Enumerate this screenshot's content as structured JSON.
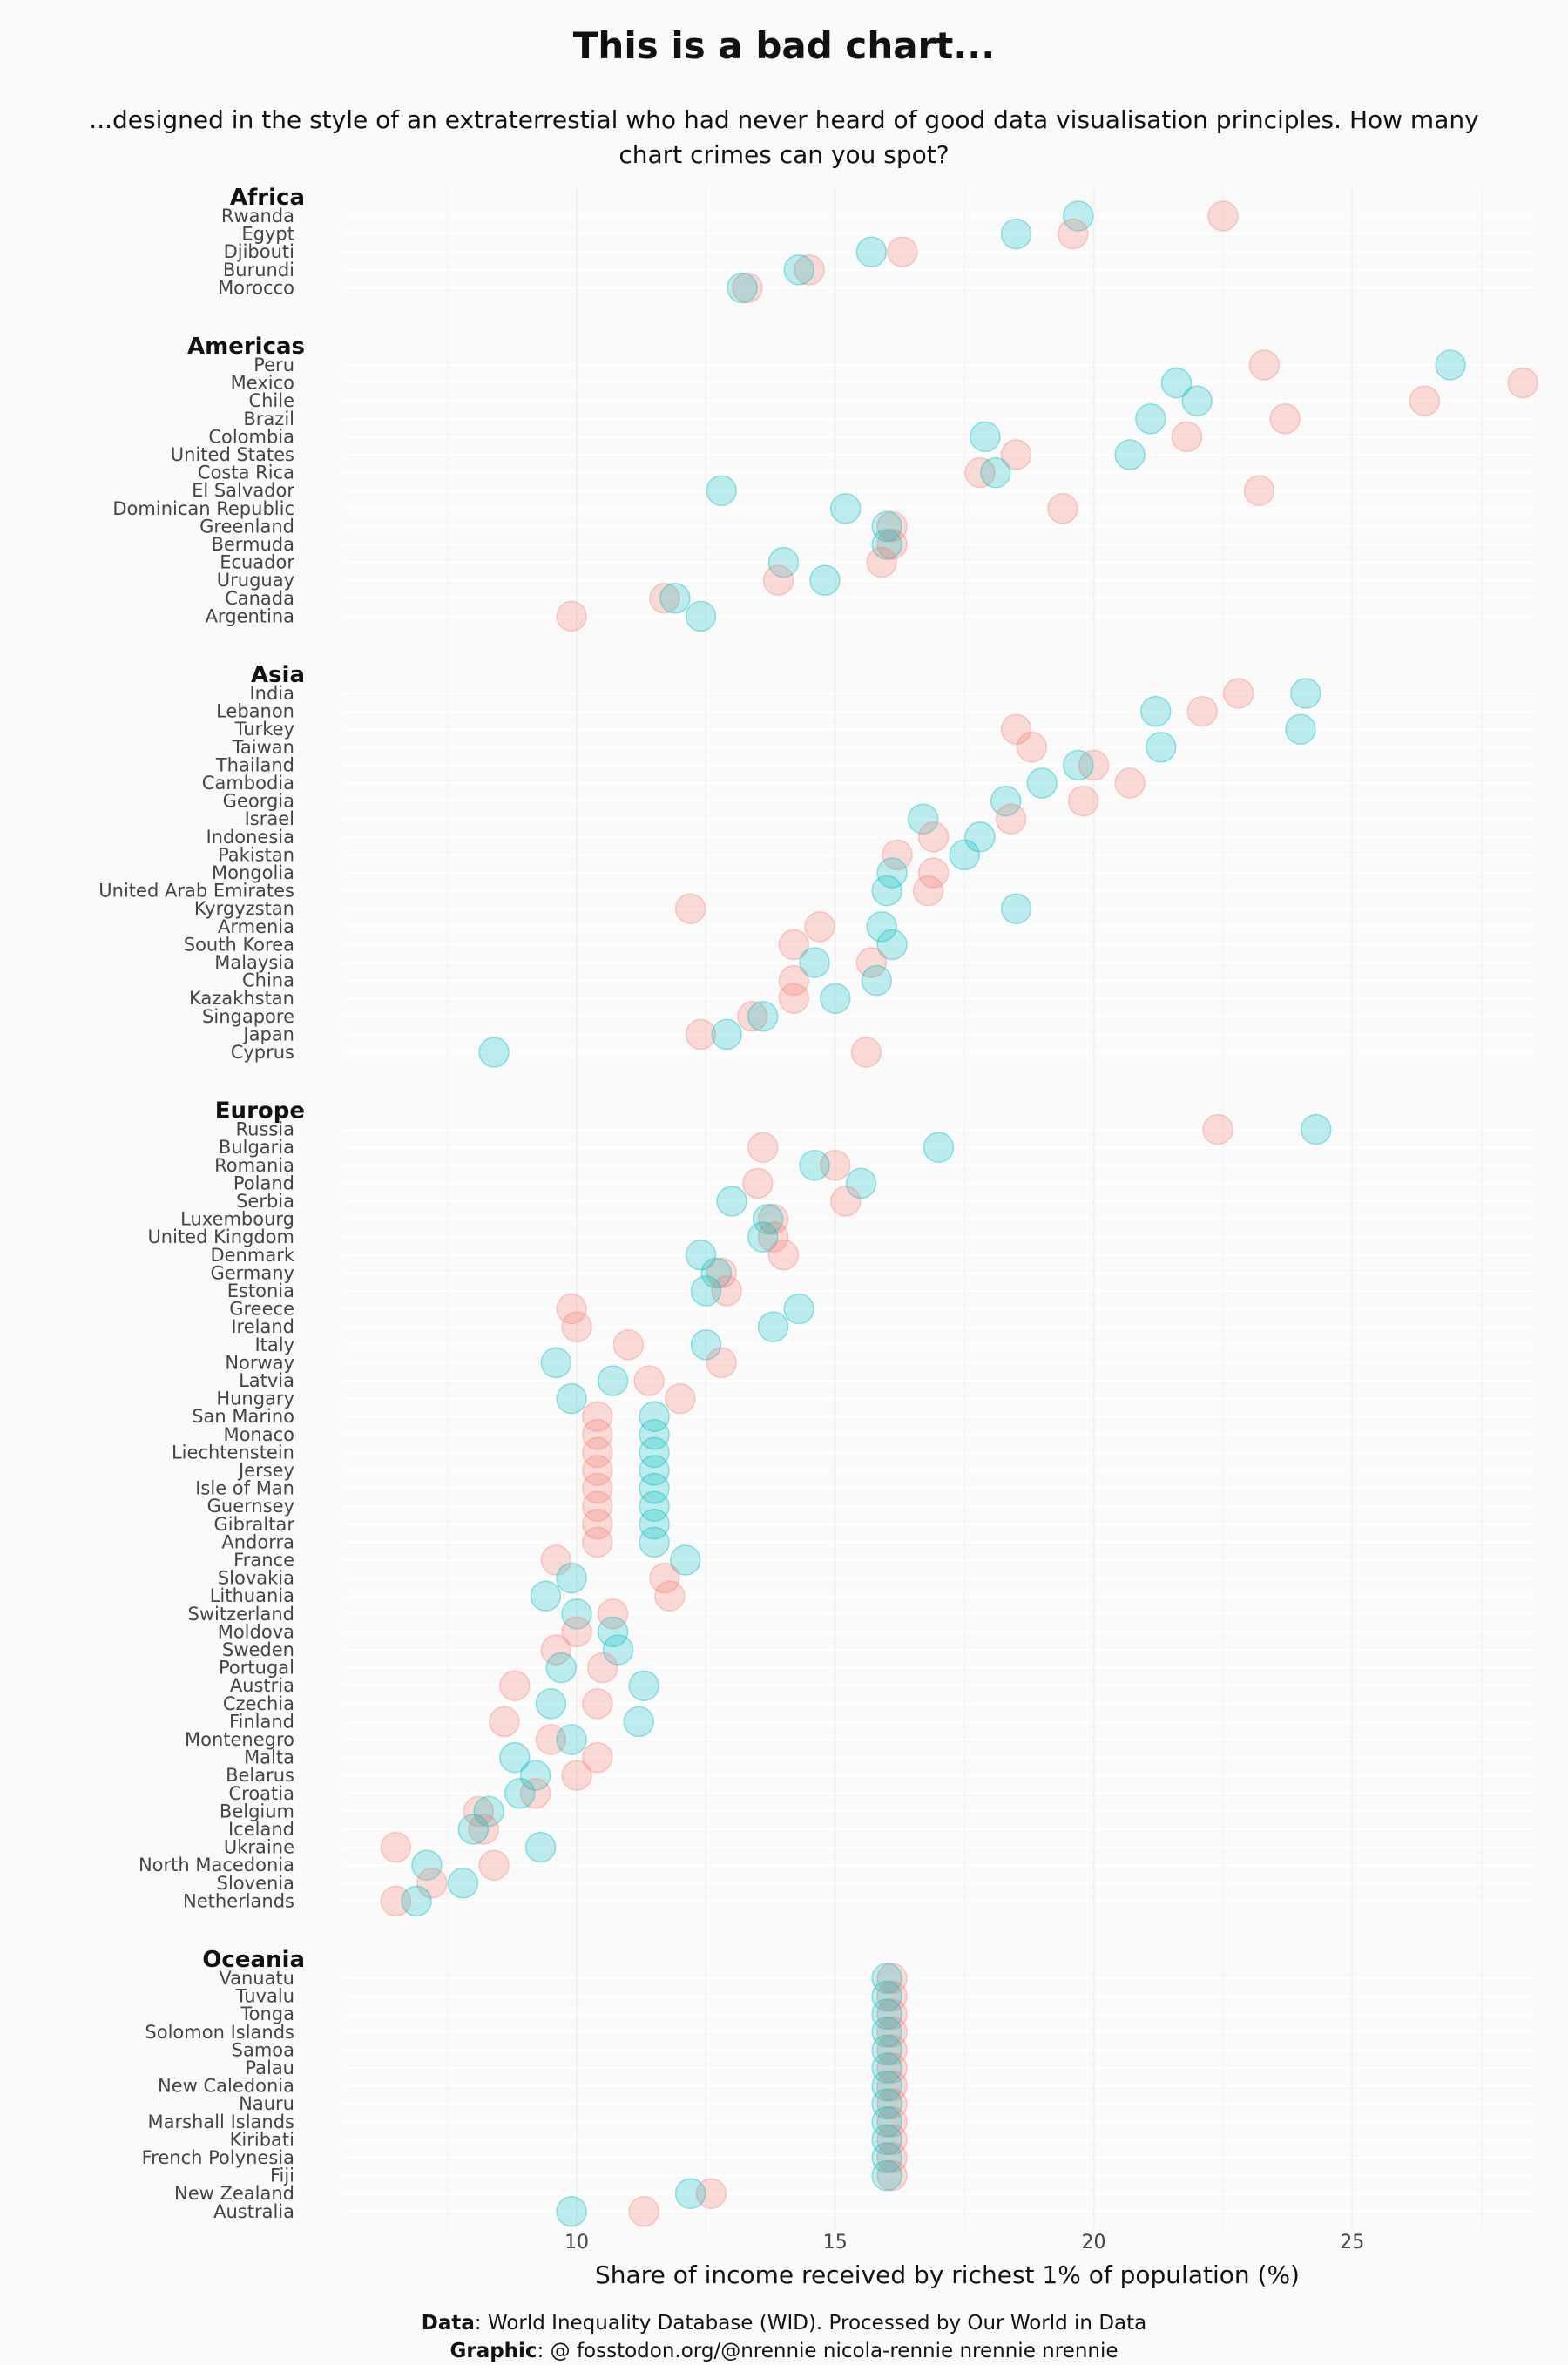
{
  "chart_data": {
    "type": "scatter",
    "title": "This is a bad chart...",
    "subtitle": "...designed in the style of an extraterrestial who had never heard of good data visualisation principles. How many chart crimes can you spot?",
    "xlabel": "Share of income received by richest 1% of population (%)",
    "xlim": [
      5.5,
      28.5
    ],
    "xticks": [
      10,
      15,
      20,
      25
    ],
    "xtick_labels": [
      "10",
      "15",
      "20",
      "25"
    ],
    "colors": {
      "series_a": "#f8766d",
      "series_b": "#00bfc4"
    },
    "caption": {
      "data_label": "Data",
      "data_text": ": World Inequality Database (WID). Processed by Our World in Data",
      "graphic_label": "Graphic",
      "graphic_text": ": @ fosstodon.org/@nrennie  nicola-rennie  nrennie  nrennie"
    },
    "regions": [
      {
        "name": "Africa",
        "countries": [
          {
            "name": "Rwanda",
            "a": 22.5,
            "b": 19.7
          },
          {
            "name": "Egypt",
            "a": 19.6,
            "b": 18.5
          },
          {
            "name": "Djibouti",
            "a": 16.3,
            "b": 15.7
          },
          {
            "name": "Burundi",
            "a": 14.5,
            "b": 14.3
          },
          {
            "name": "Morocco",
            "a": 13.3,
            "b": 13.2
          }
        ]
      },
      {
        "name": "Americas",
        "countries": [
          {
            "name": "Peru",
            "a": 23.3,
            "b": 26.9
          },
          {
            "name": "Mexico",
            "a": 28.3,
            "b": 21.6
          },
          {
            "name": "Chile",
            "a": 26.4,
            "b": 22.0
          },
          {
            "name": "Brazil",
            "a": 23.7,
            "b": 21.1
          },
          {
            "name": "Colombia",
            "a": 21.8,
            "b": 17.9
          },
          {
            "name": "United States",
            "a": 18.5,
            "b": 20.7
          },
          {
            "name": "Costa Rica",
            "a": 17.8,
            "b": 18.1
          },
          {
            "name": "El Salvador",
            "a": 23.2,
            "b": 12.8
          },
          {
            "name": "Dominican Republic",
            "a": 19.4,
            "b": 15.2
          },
          {
            "name": "Greenland",
            "a": 16.1,
            "b": 16.0
          },
          {
            "name": "Bermuda",
            "a": 16.1,
            "b": 16.0
          },
          {
            "name": "Ecuador",
            "a": 15.9,
            "b": 14.0
          },
          {
            "name": "Uruguay",
            "a": 13.9,
            "b": 14.8
          },
          {
            "name": "Canada",
            "a": 11.7,
            "b": 11.9
          },
          {
            "name": "Argentina",
            "a": 9.9,
            "b": 12.4
          }
        ]
      },
      {
        "name": "Asia",
        "countries": [
          {
            "name": "India",
            "a": 22.8,
            "b": 24.1
          },
          {
            "name": "Lebanon",
            "a": 22.1,
            "b": 21.2
          },
          {
            "name": "Turkey",
            "a": 18.5,
            "b": 24.0
          },
          {
            "name": "Taiwan",
            "a": 18.8,
            "b": 21.3
          },
          {
            "name": "Thailand",
            "a": 20.0,
            "b": 19.7
          },
          {
            "name": "Cambodia",
            "a": 20.7,
            "b": 19.0
          },
          {
            "name": "Georgia",
            "a": 19.8,
            "b": 18.3
          },
          {
            "name": "Israel",
            "a": 18.4,
            "b": 16.7
          },
          {
            "name": "Indonesia",
            "a": 16.9,
            "b": 17.8
          },
          {
            "name": "Pakistan",
            "a": 16.2,
            "b": 17.5
          },
          {
            "name": "Mongolia",
            "a": 16.9,
            "b": 16.1
          },
          {
            "name": "United Arab Emirates",
            "a": 16.8,
            "b": 16.0
          },
          {
            "name": "Kyrgyzstan",
            "a": 12.2,
            "b": 18.5
          },
          {
            "name": "Armenia",
            "a": 14.7,
            "b": 15.9
          },
          {
            "name": "South Korea",
            "a": 14.2,
            "b": 16.1
          },
          {
            "name": "Malaysia",
            "a": 15.7,
            "b": 14.6
          },
          {
            "name": "China",
            "a": 14.2,
            "b": 15.8
          },
          {
            "name": "Kazakhstan",
            "a": 14.2,
            "b": 15.0
          },
          {
            "name": "Singapore",
            "a": 13.4,
            "b": 13.6
          },
          {
            "name": "Japan",
            "a": 12.4,
            "b": 12.9
          },
          {
            "name": "Cyprus",
            "a": 15.6,
            "b": 8.4
          }
        ]
      },
      {
        "name": "Europe",
        "countries": [
          {
            "name": "Russia",
            "a": 22.4,
            "b": 24.3
          },
          {
            "name": "Bulgaria",
            "a": 13.6,
            "b": 17.0
          },
          {
            "name": "Romania",
            "a": 15.0,
            "b": 14.6
          },
          {
            "name": "Poland",
            "a": 13.5,
            "b": 15.5
          },
          {
            "name": "Serbia",
            "a": 15.2,
            "b": 13.0
          },
          {
            "name": "Luxembourg",
            "a": 13.8,
            "b": 13.7
          },
          {
            "name": "United Kingdom",
            "a": 13.8,
            "b": 13.6
          },
          {
            "name": "Denmark",
            "a": 14.0,
            "b": 12.4
          },
          {
            "name": "Germany",
            "a": 12.8,
            "b": 12.7
          },
          {
            "name": "Estonia",
            "a": 12.9,
            "b": 12.5
          },
          {
            "name": "Greece",
            "a": 9.9,
            "b": 14.3
          },
          {
            "name": "Ireland",
            "a": 10.0,
            "b": 13.8
          },
          {
            "name": "Italy",
            "a": 11.0,
            "b": 12.5
          },
          {
            "name": "Norway",
            "a": 12.8,
            "b": 9.6
          },
          {
            "name": "Latvia",
            "a": 11.4,
            "b": 10.7
          },
          {
            "name": "Hungary",
            "a": 12.0,
            "b": 9.9
          },
          {
            "name": "San Marino",
            "a": 10.4,
            "b": 11.5
          },
          {
            "name": "Monaco",
            "a": 10.4,
            "b": 11.5
          },
          {
            "name": "Liechtenstein",
            "a": 10.4,
            "b": 11.5
          },
          {
            "name": "Jersey",
            "a": 10.4,
            "b": 11.5
          },
          {
            "name": "Isle of Man",
            "a": 10.4,
            "b": 11.5
          },
          {
            "name": "Guernsey",
            "a": 10.4,
            "b": 11.5
          },
          {
            "name": "Gibraltar",
            "a": 10.4,
            "b": 11.5
          },
          {
            "name": "Andorra",
            "a": 10.4,
            "b": 11.5
          },
          {
            "name": "France",
            "a": 9.6,
            "b": 12.1
          },
          {
            "name": "Slovakia",
            "a": 11.7,
            "b": 9.9
          },
          {
            "name": "Lithuania",
            "a": 11.8,
            "b": 9.4
          },
          {
            "name": "Switzerland",
            "a": 10.7,
            "b": 10.0
          },
          {
            "name": "Moldova",
            "a": 10.0,
            "b": 10.7
          },
          {
            "name": "Sweden",
            "a": 9.6,
            "b": 10.8
          },
          {
            "name": "Portugal",
            "a": 10.5,
            "b": 9.7
          },
          {
            "name": "Austria",
            "a": 8.8,
            "b": 11.3
          },
          {
            "name": "Czechia",
            "a": 10.4,
            "b": 9.5
          },
          {
            "name": "Finland",
            "a": 8.6,
            "b": 11.2
          },
          {
            "name": "Montenegro",
            "a": 9.5,
            "b": 9.9
          },
          {
            "name": "Malta",
            "a": 10.4,
            "b": 8.8
          },
          {
            "name": "Belarus",
            "a": 10.0,
            "b": 9.2
          },
          {
            "name": "Croatia",
            "a": 9.2,
            "b": 8.9
          },
          {
            "name": "Belgium",
            "a": 8.1,
            "b": 8.3
          },
          {
            "name": "Iceland",
            "a": 8.2,
            "b": 8.0
          },
          {
            "name": "Ukraine",
            "a": 6.5,
            "b": 9.3
          },
          {
            "name": "North Macedonia",
            "a": 8.4,
            "b": 7.1
          },
          {
            "name": "Slovenia",
            "a": 7.2,
            "b": 7.8
          },
          {
            "name": "Netherlands",
            "a": 6.5,
            "b": 6.9
          }
        ]
      },
      {
        "name": "Oceania",
        "countries": [
          {
            "name": "Vanuatu",
            "a": 16.1,
            "b": 16.0
          },
          {
            "name": "Tuvalu",
            "a": 16.1,
            "b": 16.0
          },
          {
            "name": "Tonga",
            "a": 16.1,
            "b": 16.0
          },
          {
            "name": "Solomon Islands",
            "a": 16.1,
            "b": 16.0
          },
          {
            "name": "Samoa",
            "a": 16.1,
            "b": 16.0
          },
          {
            "name": "Palau",
            "a": 16.1,
            "b": 16.0
          },
          {
            "name": "New Caledonia",
            "a": 16.1,
            "b": 16.0
          },
          {
            "name": "Nauru",
            "a": 16.1,
            "b": 16.0
          },
          {
            "name": "Marshall Islands",
            "a": 16.1,
            "b": 16.0
          },
          {
            "name": "Kiribati",
            "a": 16.1,
            "b": 16.0
          },
          {
            "name": "French Polynesia",
            "a": 16.1,
            "b": 16.0
          },
          {
            "name": "Fiji",
            "a": 16.1,
            "b": 16.0
          },
          {
            "name": "New Zealand",
            "a": 12.6,
            "b": 12.2
          },
          {
            "name": "Australia",
            "a": 11.3,
            "b": 9.9
          }
        ]
      }
    ]
  }
}
